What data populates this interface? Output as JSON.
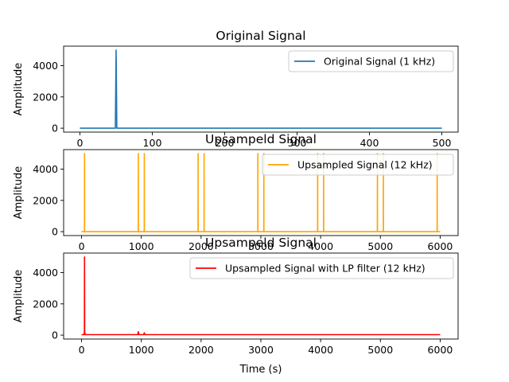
{
  "chart_data": [
    {
      "type": "line",
      "title": "Original Signal",
      "xlabel": "",
      "ylabel": "Amplitude",
      "xlim": [
        -22.5,
        522.5
      ],
      "ylim": [
        -250,
        5250
      ],
      "xticks": [
        0,
        100,
        200,
        300,
        400,
        500
      ],
      "yticks": [
        0,
        2000,
        4000
      ],
      "legend": "top-right",
      "series": [
        {
          "name": "Original Signal (1 kHz)",
          "color": "#1f77b4",
          "x": [
            0,
            49,
            50,
            51,
            500
          ],
          "y": [
            0,
            0,
            5000,
            0,
            0
          ]
        }
      ]
    },
    {
      "type": "line",
      "title": "Upsampeld Signal",
      "xlabel": "",
      "ylabel": "Amplitude",
      "xlim": [
        -300,
        6300
      ],
      "ylim": [
        -250,
        5250
      ],
      "xticks": [
        0,
        1000,
        2000,
        3000,
        4000,
        5000,
        6000
      ],
      "yticks": [
        0,
        2000,
        4000
      ],
      "legend": "top-right",
      "series": [
        {
          "name": "Upsampled Signal (12 kHz)",
          "color": "#ffa500",
          "x": [
            0,
            49,
            50,
            51,
            949,
            950,
            951,
            1049,
            1050,
            1051,
            1949,
            1950,
            1951,
            2049,
            2050,
            2051,
            2949,
            2950,
            2951,
            3049,
            3050,
            3051,
            3949,
            3950,
            3951,
            4049,
            4050,
            4051,
            4949,
            4950,
            4951,
            5049,
            5050,
            5051,
            5949,
            5950,
            5951,
            6000
          ],
          "y": [
            0,
            0,
            5000,
            0,
            0,
            5000,
            0,
            0,
            5000,
            0,
            0,
            5000,
            0,
            0,
            5000,
            0,
            0,
            5000,
            0,
            0,
            5000,
            0,
            0,
            5000,
            0,
            0,
            5000,
            0,
            0,
            5000,
            0,
            0,
            5000,
            0,
            0,
            5000,
            0,
            0
          ]
        }
      ]
    },
    {
      "type": "line",
      "title": "Upsampeld Signal",
      "xlabel": "Time (s)",
      "ylabel": "Amplitude",
      "xlim": [
        -300,
        6300
      ],
      "ylim": [
        -250,
        5250
      ],
      "xticks": [
        0,
        1000,
        2000,
        3000,
        4000,
        5000,
        6000
      ],
      "yticks": [
        0,
        2000,
        4000
      ],
      "legend": "top-right",
      "series": [
        {
          "name": "Upsampled Signal with LP filter (12 kHz)",
          "color": "#ff0000",
          "x": [
            0,
            40,
            48,
            50,
            52,
            60,
            100,
            940,
            950,
            960,
            1040,
            1050,
            1060,
            6000
          ],
          "y": [
            30,
            30,
            200,
            5000,
            200,
            30,
            30,
            30,
            220,
            30,
            30,
            150,
            30,
            30
          ]
        }
      ]
    }
  ]
}
